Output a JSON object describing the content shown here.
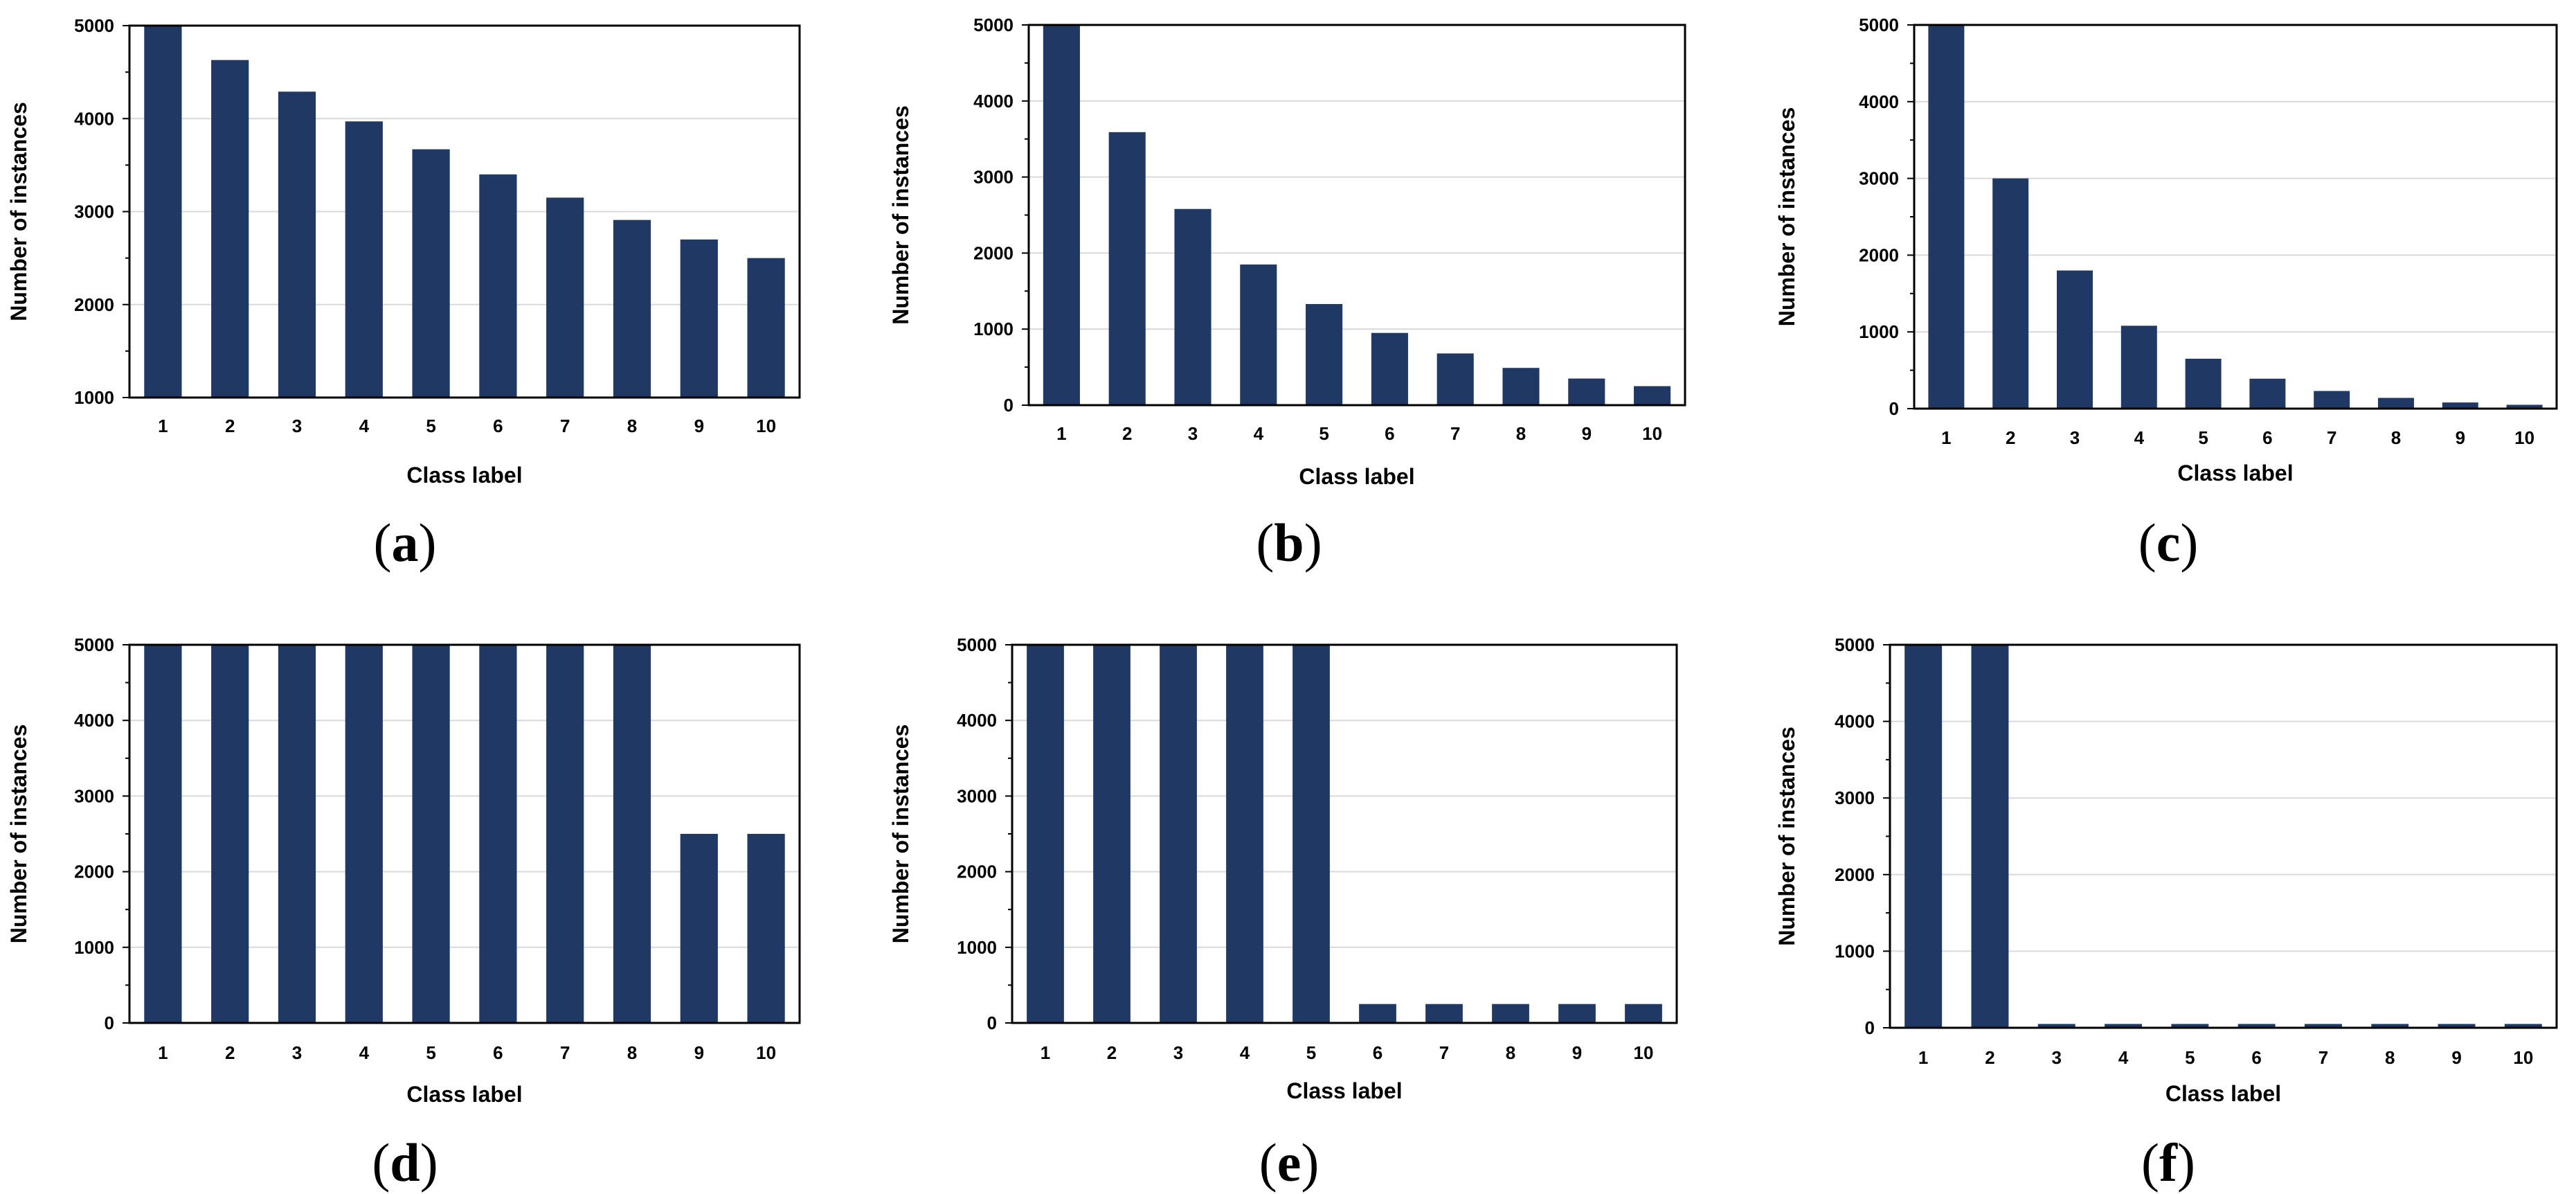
{
  "colors": {
    "bar": "#203864",
    "grid": "#d9d9d9",
    "axis": "#000000"
  },
  "chart_data": [
    {
      "id": "a",
      "type": "bar",
      "label_open": "(",
      "label_letter": "a",
      "label_close": ")",
      "xlabel": "Class label",
      "ylabel": "Number of instances",
      "categories": [
        "1",
        "2",
        "3",
        "4",
        "5",
        "6",
        "7",
        "8",
        "9",
        "10"
      ],
      "values": [
        5000,
        4630,
        4290,
        3970,
        3670,
        3400,
        3150,
        2910,
        2700,
        2500
      ],
      "ylim": [
        1000,
        5000
      ],
      "yticks": [
        1000,
        2000,
        3000,
        4000,
        5000
      ],
      "yticklabels": [
        "1000",
        "2000",
        "3000",
        "4000",
        "5000"
      ],
      "grid": true
    },
    {
      "id": "b",
      "type": "bar",
      "label_open": "(",
      "label_letter": "b",
      "label_close": ")",
      "xlabel": "Class label",
      "ylabel": "Number of instances",
      "categories": [
        "1",
        "2",
        "3",
        "4",
        "5",
        "6",
        "7",
        "8",
        "9",
        "10"
      ],
      "values": [
        5000,
        3590,
        2580,
        1850,
        1330,
        950,
        680,
        490,
        350,
        250
      ],
      "ylim": [
        0,
        5000
      ],
      "yticks": [
        0,
        1000,
        2000,
        3000,
        4000,
        5000
      ],
      "yticklabels": [
        "0",
        "1000",
        "2000",
        "3000",
        "4000",
        "5000"
      ],
      "grid": true
    },
    {
      "id": "c",
      "type": "bar",
      "label_open": "(",
      "label_letter": "c",
      "label_close": ")",
      "xlabel": "Class label",
      "ylabel": "Number of instances",
      "categories": [
        "1",
        "2",
        "3",
        "4",
        "5",
        "6",
        "7",
        "8",
        "9",
        "10"
      ],
      "values": [
        5000,
        3000,
        1800,
        1080,
        650,
        390,
        230,
        140,
        80,
        50
      ],
      "ylim": [
        0,
        5000
      ],
      "yticks": [
        0,
        1000,
        2000,
        3000,
        4000,
        5000
      ],
      "yticklabels": [
        "0",
        "1000",
        "2000",
        "3000",
        "4000",
        "5000"
      ],
      "grid": true
    },
    {
      "id": "d",
      "type": "bar",
      "label_open": "(",
      "label_letter": "d",
      "label_close": ")",
      "xlabel": "Class label",
      "ylabel": "Number of instances",
      "categories": [
        "1",
        "2",
        "3",
        "4",
        "5",
        "6",
        "7",
        "8",
        "9",
        "10"
      ],
      "values": [
        5000,
        5000,
        5000,
        5000,
        5000,
        5000,
        5000,
        5000,
        2500,
        2500
      ],
      "ylim": [
        0,
        5000
      ],
      "yticks": [
        0,
        1000,
        2000,
        3000,
        4000,
        5000
      ],
      "yticklabels": [
        "0",
        "1000",
        "2000",
        "3000",
        "4000",
        "5000"
      ],
      "grid": true
    },
    {
      "id": "e",
      "type": "bar",
      "label_open": "(",
      "label_letter": "e",
      "label_close": ")",
      "xlabel": "Class label",
      "ylabel": "Number of instances",
      "categories": [
        "1",
        "2",
        "3",
        "4",
        "5",
        "6",
        "7",
        "8",
        "9",
        "10"
      ],
      "values": [
        5000,
        5000,
        5000,
        5000,
        5000,
        250,
        250,
        250,
        250,
        250
      ],
      "ylim": [
        0,
        5000
      ],
      "yticks": [
        0,
        1000,
        2000,
        3000,
        4000,
        5000
      ],
      "yticklabels": [
        "0",
        "1000",
        "2000",
        "3000",
        "4000",
        "5000"
      ],
      "grid": true
    },
    {
      "id": "f",
      "type": "bar",
      "label_open": "(",
      "label_letter": "f",
      "label_close": ")",
      "xlabel": "Class label",
      "ylabel": "Number of instances",
      "categories": [
        "1",
        "2",
        "3",
        "4",
        "5",
        "6",
        "7",
        "8",
        "9",
        "10"
      ],
      "values": [
        5000,
        5000,
        50,
        50,
        50,
        50,
        50,
        50,
        50,
        50
      ],
      "ylim": [
        0,
        5000
      ],
      "yticks": [
        0,
        1000,
        2000,
        3000,
        4000,
        5000
      ],
      "yticklabels": [
        "0",
        "1000",
        "2000",
        "3000",
        "4000",
        "5000"
      ],
      "grid": true
    }
  ]
}
